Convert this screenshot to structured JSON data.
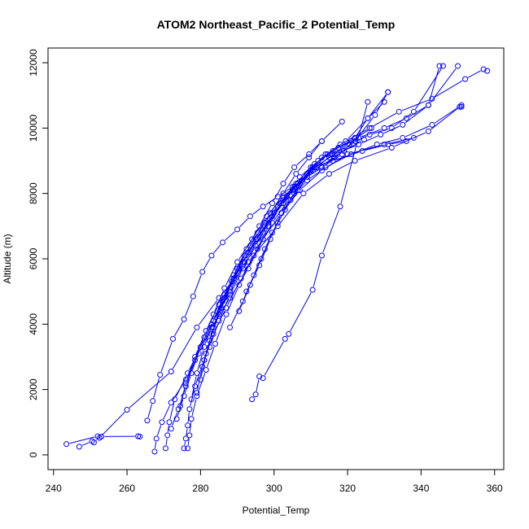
{
  "chart_data": {
    "type": "line",
    "title": "ATOM2 Northeast_Pacific_2 Potential_Temp",
    "xlabel": "Potential_Temp",
    "ylabel": "Altitude (m)",
    "xlim": [
      238.5,
      362.5
    ],
    "ylim": [
      -450,
      12450
    ],
    "xticks": [
      240,
      260,
      280,
      300,
      320,
      340,
      360
    ],
    "yticks": [
      0,
      2000,
      4000,
      6000,
      8000,
      10000,
      12000
    ],
    "grid": false,
    "legend": "none",
    "marker": "open-circle",
    "color": "#0000ff",
    "series": [
      {
        "x": [
          243.5,
          252,
          253,
          263,
          263.5
        ],
        "y": [
          330,
          570,
          560,
          570,
          560
        ]
      },
      {
        "x": [
          247,
          250.5,
          251,
          252.5,
          260,
          272,
          279,
          285,
          293,
          301,
          308,
          315,
          322,
          332,
          342,
          350.5,
          351
        ],
        "y": [
          250,
          420,
          380,
          520,
          1380,
          2550,
          3900,
          4800,
          5900,
          7000,
          8000,
          8600,
          9000,
          9400,
          9900,
          10650,
          10650
        ]
      },
      {
        "x": [
          267.5,
          268,
          269.5,
          272,
          276,
          279.5,
          283,
          288,
          293,
          297,
          302,
          307,
          313,
          320,
          330,
          338
        ],
        "y": [
          100,
          500,
          1000,
          1600,
          2300,
          3100,
          3900,
          4800,
          5700,
          6600,
          7400,
          8100,
          8700,
          9200,
          9500,
          9700
        ]
      },
      {
        "x": [
          270.5,
          271,
          271.5,
          273,
          276.5,
          280,
          283.5,
          288,
          292,
          297,
          301,
          306,
          310,
          316,
          324,
          331,
          336
        ],
        "y": [
          200,
          600,
          1000,
          1700,
          2500,
          3300,
          4100,
          5000,
          5900,
          6800,
          7600,
          8300,
          8800,
          9000,
          9300,
          9500,
          9600
        ]
      },
      {
        "x": [
          275.5,
          276,
          276.5,
          277,
          278.5,
          281,
          283.5,
          287,
          291,
          295.5,
          299.5,
          304,
          309,
          314,
          321,
          328,
          335,
          343,
          351
        ],
        "y": [
          200,
          500,
          900,
          1400,
          2100,
          2900,
          3700,
          4500,
          5400,
          6300,
          7100,
          7800,
          8400,
          8800,
          9200,
          9500,
          9700,
          10100,
          10700
        ]
      },
      {
        "x": [
          276.5,
          277,
          277.5,
          279,
          281.5,
          284,
          287,
          290.5,
          294.5,
          298.5,
          302.5,
          307,
          312,
          318,
          326,
          334,
          343,
          352,
          357,
          358
        ],
        "y": [
          200,
          600,
          1100,
          1800,
          2600,
          3400,
          4300,
          5200,
          6100,
          7000,
          7800,
          8500,
          9000,
          9500,
          10000,
          10500,
          10900,
          11500,
          11800,
          11750
        ]
      },
      {
        "x": [
          265.5,
          267,
          269,
          272.5,
          275.5,
          278,
          280.5,
          283,
          286,
          290,
          293.5,
          297,
          301,
          305,
          309,
          313,
          319,
          324.5
        ],
        "y": [
          1050,
          1650,
          2450,
          3550,
          4150,
          4850,
          5600,
          6100,
          6500,
          6900,
          7300,
          7600,
          7900,
          8200,
          8500,
          8800,
          9300,
          9650
        ]
      },
      {
        "x": [
          272,
          274,
          276,
          278.5,
          281,
          283.5,
          286.5,
          290,
          294,
          298,
          302.5,
          307.5,
          313,
          318.5,
          322,
          325.5,
          330
        ],
        "y": [
          800,
          1400,
          2100,
          2900,
          3600,
          4300,
          5100,
          5900,
          6600,
          7300,
          7900,
          8400,
          8800,
          9200,
          9700,
          10300,
          10800
        ]
      },
      {
        "x": [
          273.5,
          275.5,
          277.5,
          280,
          283,
          286.5,
          290.5,
          295,
          300,
          305,
          310.5,
          316.5,
          322,
          327.5,
          331
        ],
        "y": [
          1100,
          1800,
          2500,
          3300,
          4000,
          4800,
          5700,
          6600,
          7400,
          8100,
          8700,
          9100,
          9600,
          10400,
          11100
        ]
      },
      {
        "x": [
          274.5,
          276,
          278.5,
          281.5,
          285,
          289,
          293,
          297.5,
          302,
          306.5,
          311,
          316.5,
          323,
          329,
          335,
          342,
          345
        ],
        "y": [
          1500,
          2200,
          3000,
          3800,
          4600,
          5400,
          6200,
          7000,
          7700,
          8300,
          8800,
          9200,
          9500,
          9800,
          10100,
          10700,
          11900
        ]
      },
      {
        "x": [
          277.5,
          279,
          281,
          283.5,
          286.5,
          290,
          293.5,
          297.5,
          301.5,
          305.5,
          310,
          315,
          320.5,
          326,
          332,
          338,
          346
        ],
        "y": [
          1700,
          2500,
          3300,
          4100,
          4900,
          5700,
          6400,
          7100,
          7700,
          8200,
          8700,
          9100,
          9500,
          9800,
          10000,
          10500,
          11900
        ]
      },
      {
        "x": [
          279,
          280.5,
          282.5,
          285,
          288,
          291.5,
          295.5,
          299.5,
          303.5,
          307.5,
          311.5,
          316,
          321,
          326.5
        ],
        "y": [
          1900,
          2700,
          3500,
          4300,
          5100,
          5900,
          6600,
          7300,
          7900,
          8400,
          8800,
          9200,
          9600,
          10000
        ]
      },
      {
        "x": [
          280,
          281.5,
          283.5,
          286,
          289,
          292.5,
          296,
          299.5,
          302.5,
          305.5,
          309.5,
          313,
          318.5
        ],
        "y": [
          2300,
          3100,
          3900,
          4700,
          5500,
          6300,
          7000,
          7700,
          8300,
          8800,
          9200,
          9600,
          10200
        ]
      },
      {
        "x": [
          281,
          283,
          285.5,
          288.5,
          292,
          295.5,
          299,
          302.5,
          306,
          309.5,
          313
        ],
        "y": [
          2900,
          3700,
          4500,
          5300,
          6100,
          6800,
          7400,
          8000,
          8600,
          9100,
          9600
        ]
      },
      {
        "x": [
          282.5,
          285,
          288,
          291.5,
          295,
          298.5,
          302.5,
          306.5,
          310.5,
          314
        ],
        "y": [
          3300,
          4100,
          4900,
          5700,
          6400,
          7100,
          7700,
          8300,
          8800,
          9200
        ]
      },
      {
        "x": [
          294,
          295,
          296,
          297,
          303,
          304,
          310.5,
          313,
          318,
          325.5
        ],
        "y": [
          1700,
          1850,
          2400,
          2350,
          3550,
          3700,
          5050,
          6100,
          7600,
          10800
        ]
      },
      {
        "x": [
          288,
          291.5,
          294.5,
          297.5,
          301,
          304.5,
          307.5,
          311,
          316,
          322
        ],
        "y": [
          3900,
          4700,
          5500,
          6300,
          7100,
          7800,
          8400,
          8900,
          9300,
          9700
        ]
      },
      {
        "x": [
          290.5,
          293.5,
          296.5,
          299.5,
          303,
          306.5,
          310,
          314.5,
          319.5,
          325.5,
          331
        ],
        "y": [
          4400,
          5200,
          6000,
          6800,
          7500,
          8100,
          8700,
          9200,
          9600,
          10300,
          11100
        ]
      },
      {
        "x": [
          292.5,
          296,
          299,
          302,
          305.5,
          309,
          313,
          317.5,
          323,
          330,
          336,
          342,
          350
        ],
        "y": [
          5000,
          5800,
          6600,
          7400,
          8000,
          8600,
          9100,
          9400,
          9700,
          10000,
          10300,
          10700,
          11900
        ]
      }
    ]
  }
}
